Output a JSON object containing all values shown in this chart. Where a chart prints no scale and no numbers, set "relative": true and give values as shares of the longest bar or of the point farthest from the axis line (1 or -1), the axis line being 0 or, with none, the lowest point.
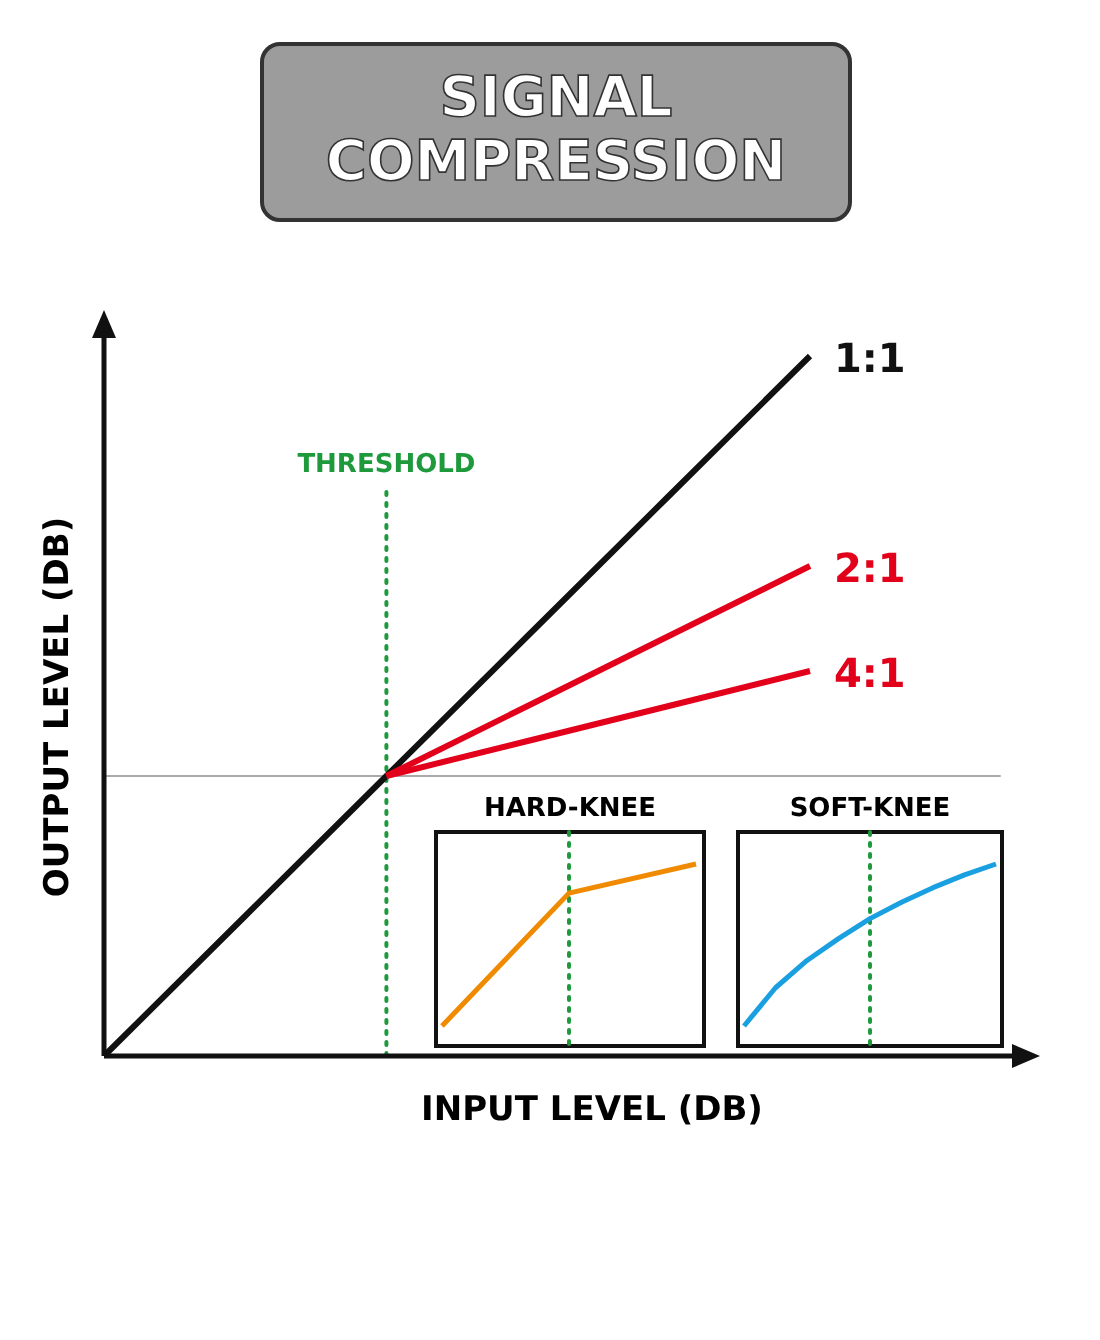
{
  "chart_data": [
    {
      "type": "line",
      "title": "SIGNAL COMPRESSION",
      "xlabel": "INPUT LEVEL (DB)",
      "ylabel": "OUTPUT LEVEL (DB)",
      "relative": true,
      "tick_labels": false,
      "categories": [
        null,
        null,
        null,
        null,
        null,
        null
      ],
      "series": [
        {
          "name": "1:1",
          "color": "#111111",
          "values": [
            0,
            0.2,
            0.4,
            0.6,
            0.8,
            1
          ]
        },
        {
          "name": "2:1",
          "color": "#e2001a",
          "values": [
            null,
            null,
            0.4,
            0.5,
            0.6,
            0.7
          ]
        },
        {
          "name": "4:1",
          "color": "#e2001a",
          "values": [
            null,
            null,
            0.4,
            0.45,
            0.5,
            0.55
          ]
        }
      ],
      "annotations": [
        "THRESHOLD"
      ],
      "ref_lines": [
        {
          "axis": "y",
          "value": 0.4,
          "color": "#aaaaaa",
          "line_style": "solid"
        }
      ]
    },
    {
      "type": "line",
      "title": "HARD-KNEE",
      "relative": true,
      "tick_labels": false,
      "categories": [
        null,
        null,
        null
      ],
      "series": [
        {
          "color": "#f08a00",
          "values": [
            0.11,
            0.84,
            1
          ]
        }
      ]
    },
    {
      "type": "line",
      "title": "SOFT-KNEE",
      "relative": true,
      "tick_labels": false,
      "categories": [
        null,
        null,
        null,
        null,
        null,
        null,
        null,
        null,
        null
      ],
      "series": [
        {
          "color": "#1aa0e0",
          "values": [
            0.11,
            0.32,
            0.47,
            0.59,
            0.7,
            0.79,
            0.87,
            0.94,
            1
          ]
        }
      ]
    }
  ]
}
